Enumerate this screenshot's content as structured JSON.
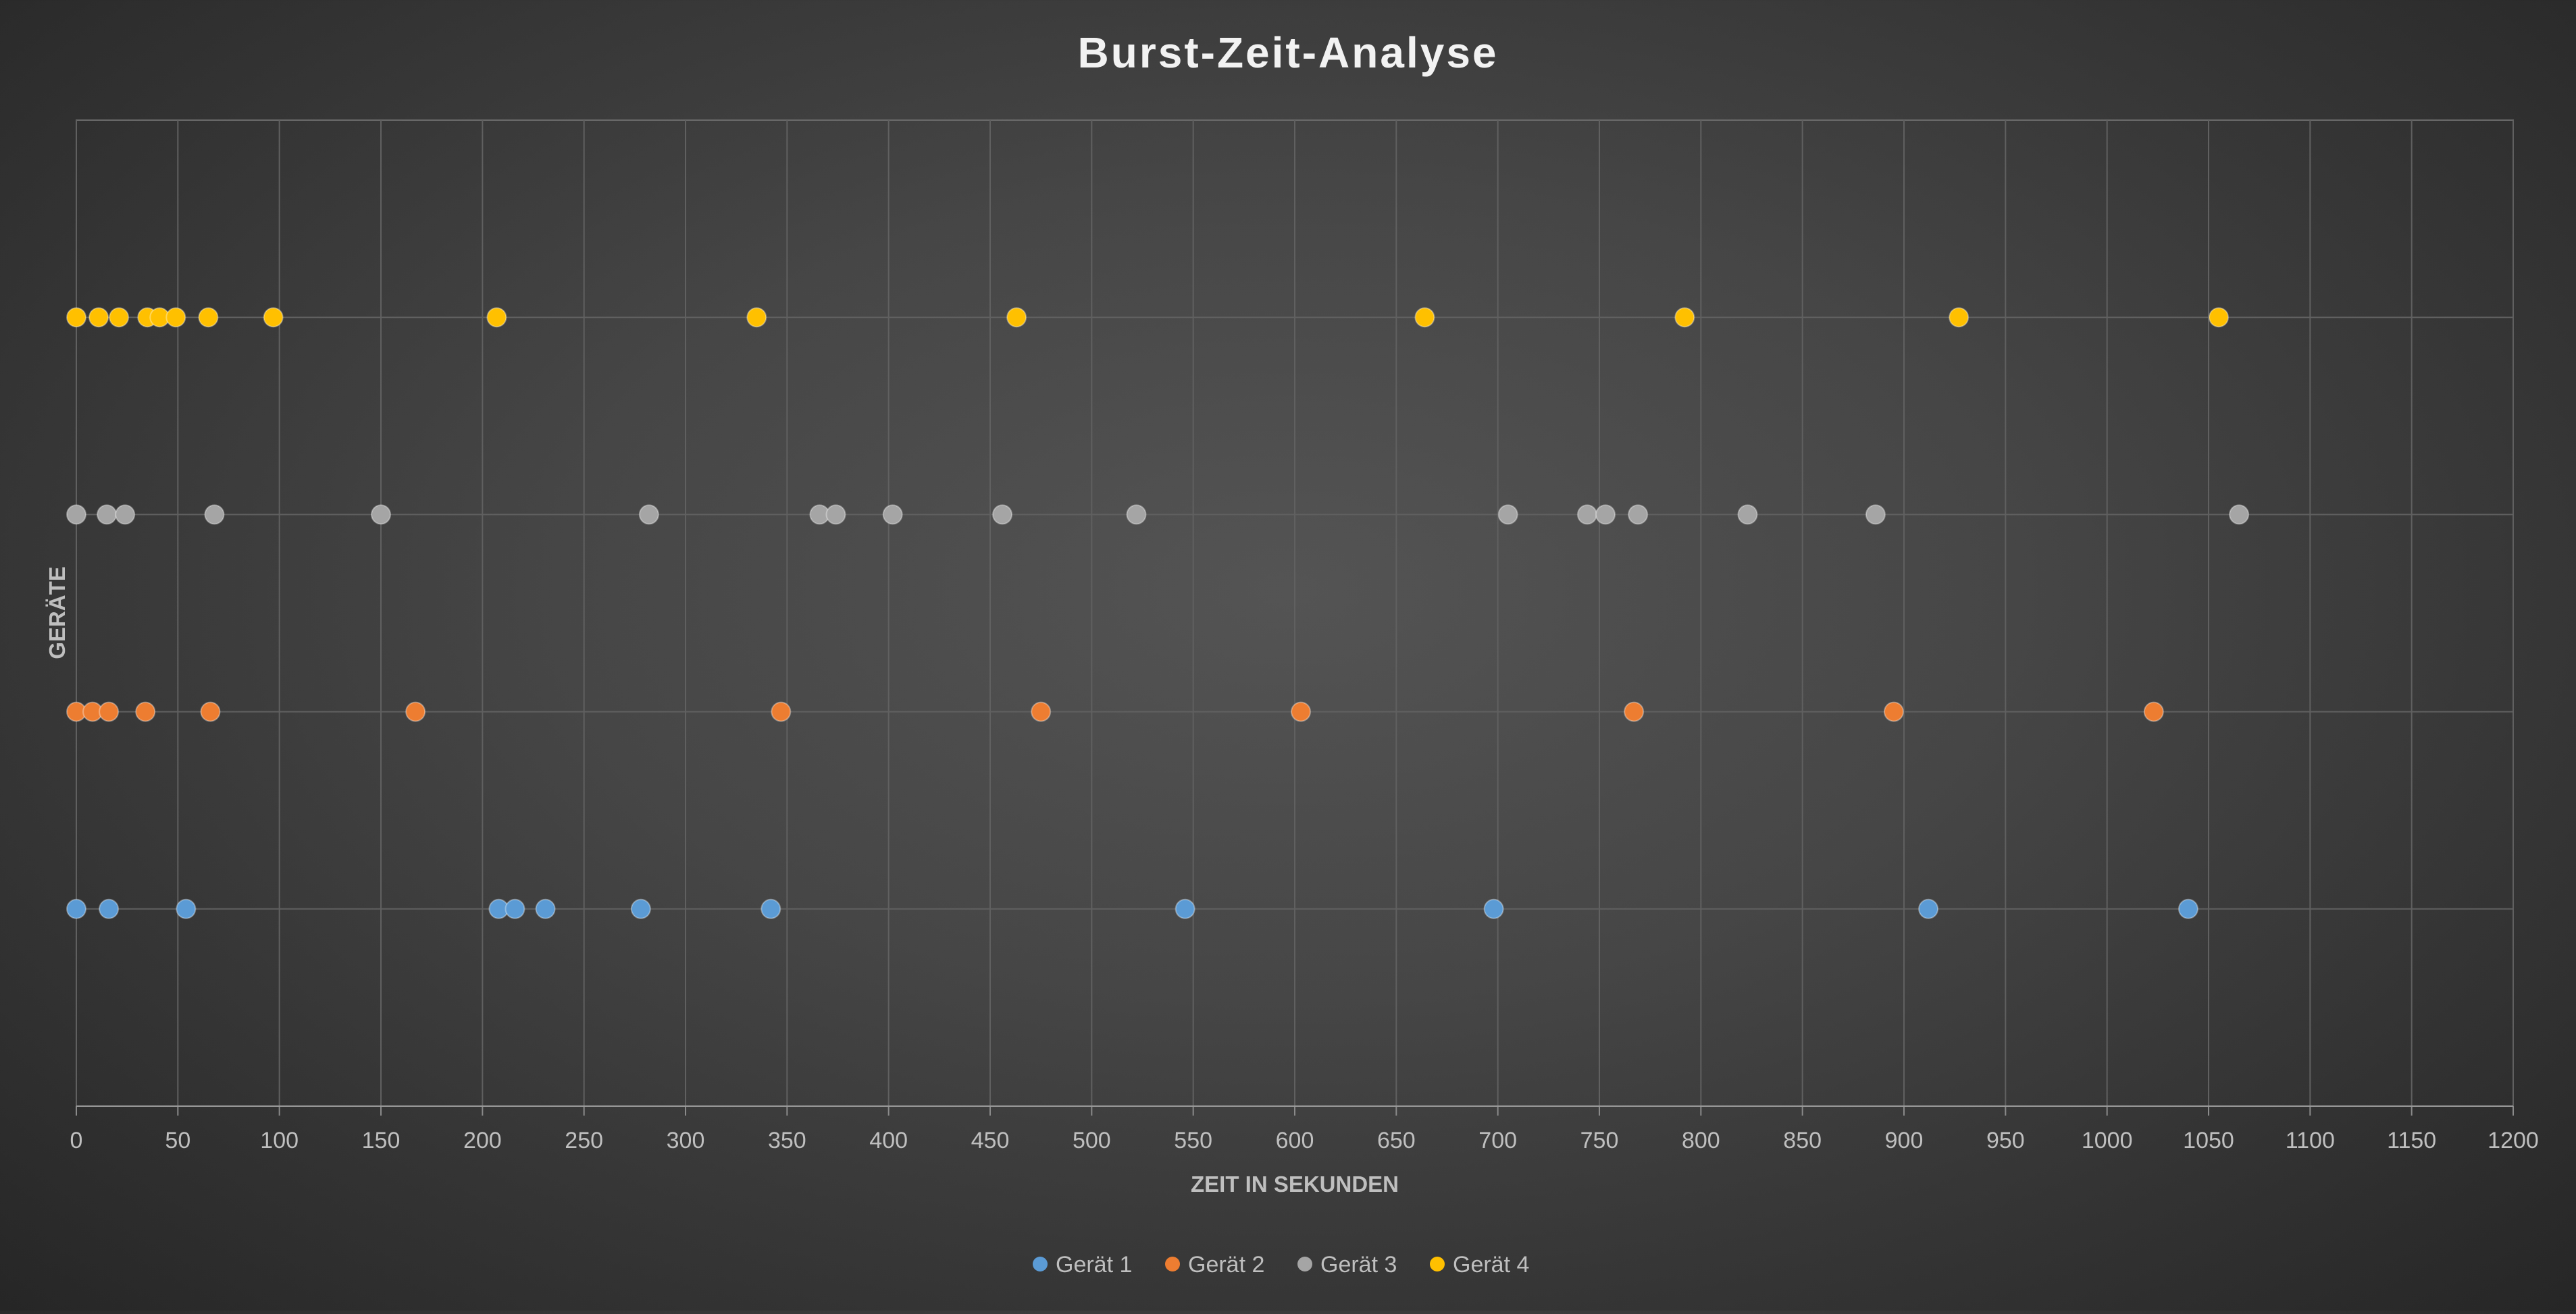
{
  "chart_data": {
    "type": "scatter",
    "title": "Burst-Zeit-Analyse",
    "xlabel": "ZEIT IN SEKUNDEN",
    "ylabel": "GERÄTE",
    "xlim": [
      0,
      1200
    ],
    "x_tick_step": 50,
    "ylim": [
      0,
      5
    ],
    "grid": true,
    "legend_position": "bottom",
    "series": [
      {
        "name": "Gerät 1",
        "color": "#5B9BD5",
        "y": 1,
        "x": [
          0,
          16,
          54,
          208,
          216,
          231,
          278,
          342,
          546,
          698,
          912,
          1040
        ]
      },
      {
        "name": "Gerät 2",
        "color": "#ED7D31",
        "y": 2,
        "x": [
          0,
          8,
          16,
          34,
          66,
          167,
          347,
          475,
          603,
          767,
          895,
          1023
        ]
      },
      {
        "name": "Gerät 3",
        "color": "#A5A5A5",
        "y": 3,
        "x": [
          0,
          15,
          24,
          68,
          150,
          282,
          366,
          374,
          402,
          456,
          522,
          705,
          744,
          753,
          769,
          823,
          886,
          1065
        ]
      },
      {
        "name": "Gerät 4",
        "color": "#FFC000",
        "y": 4,
        "x": [
          0,
          11,
          21,
          35,
          41,
          49,
          65,
          97,
          207,
          335,
          463,
          664,
          792,
          927,
          1055
        ]
      }
    ]
  }
}
